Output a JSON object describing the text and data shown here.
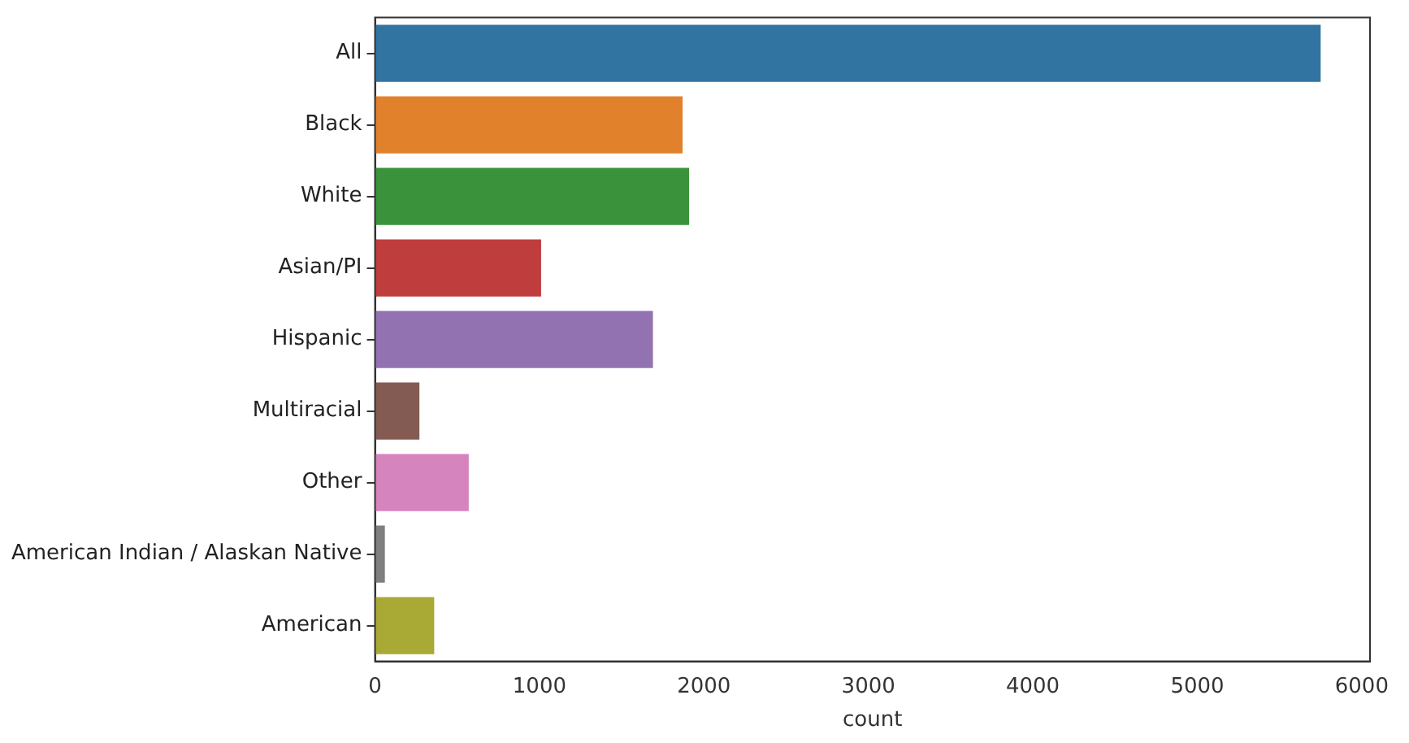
{
  "chart_data": {
    "type": "bar",
    "orientation": "horizontal",
    "xlabel": "count",
    "categories": [
      "All",
      "Black",
      "White",
      "Asian/PI",
      "Hispanic",
      "Multiracial",
      "Other",
      "American Indian / Alaskan Native",
      "American"
    ],
    "values": [
      5750,
      1870,
      1910,
      1010,
      1690,
      270,
      570,
      60,
      360
    ],
    "colors": [
      "#3274a1",
      "#e1812c",
      "#3a923a",
      "#c03d3e",
      "#9372b2",
      "#845b53",
      "#d684bd",
      "#7f7f7f",
      "#a9aa35"
    ],
    "xlim": [
      0,
      6050
    ],
    "xticks": [
      0,
      1000,
      2000,
      3000,
      4000,
      5000,
      6000
    ],
    "grid": false,
    "legend": false
  }
}
